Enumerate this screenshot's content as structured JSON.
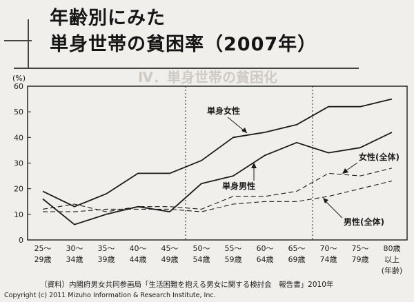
{
  "title": {
    "line1": "年齢別にみた",
    "line2": "単身世帯の貧困率（2007年）"
  },
  "source": "（資料）内閣府男女共同参画局「生活困難を抱える男女に関する検討会　報告書」2010年",
  "copyright": "Copyright (c) 2011 Mizuho Information & Research Institute, Inc.",
  "colors": {
    "background": "#f1efec",
    "line": "#1a1a1a"
  },
  "chart_data": {
    "type": "line",
    "ylabel": "(%)",
    "ylim": [
      0,
      60
    ],
    "yticks": [
      "0",
      "10",
      "20",
      "30",
      "40",
      "50",
      "60"
    ],
    "categories": [
      [
        "25～",
        "29歳"
      ],
      [
        "30～",
        "34歳"
      ],
      [
        "35～",
        "39歳"
      ],
      [
        "40～",
        "44歳"
      ],
      [
        "45～",
        "49歳"
      ],
      [
        "50～",
        "54歳"
      ],
      [
        "55～",
        "59歳"
      ],
      [
        "60～",
        "64歳"
      ],
      [
        "65～",
        "69歳"
      ],
      [
        "70～",
        "74歳"
      ],
      [
        "75～",
        "79歳"
      ],
      [
        "80歳",
        "以上"
      ]
    ],
    "xunit": "(年齢)",
    "grid": false,
    "dividers_after_category_index": [
      4,
      8
    ],
    "series": [
      {
        "name": "単身女性",
        "style": "solid",
        "values": [
          19,
          13,
          18,
          26,
          26,
          31,
          40,
          42,
          45,
          52,
          52,
          55
        ]
      },
      {
        "name": "単身男性",
        "style": "solid",
        "values": [
          16,
          6,
          10,
          13,
          11,
          22,
          25,
          33,
          38,
          34,
          36,
          42
        ]
      },
      {
        "name": "女性(全体)",
        "style": "dashed",
        "values": [
          12,
          14,
          11,
          13,
          13,
          12,
          17,
          17,
          19,
          26,
          25,
          28
        ]
      },
      {
        "name": "男性(全体)",
        "style": "dashed",
        "values": [
          11,
          11,
          12,
          12,
          12,
          11,
          14,
          15,
          15,
          17,
          20,
          23
        ]
      }
    ],
    "annotations": [
      {
        "text": "単身女性"
      },
      {
        "text": "単身男性"
      },
      {
        "text": "女性(全体)"
      },
      {
        "text": "男性(全体)"
      }
    ]
  }
}
